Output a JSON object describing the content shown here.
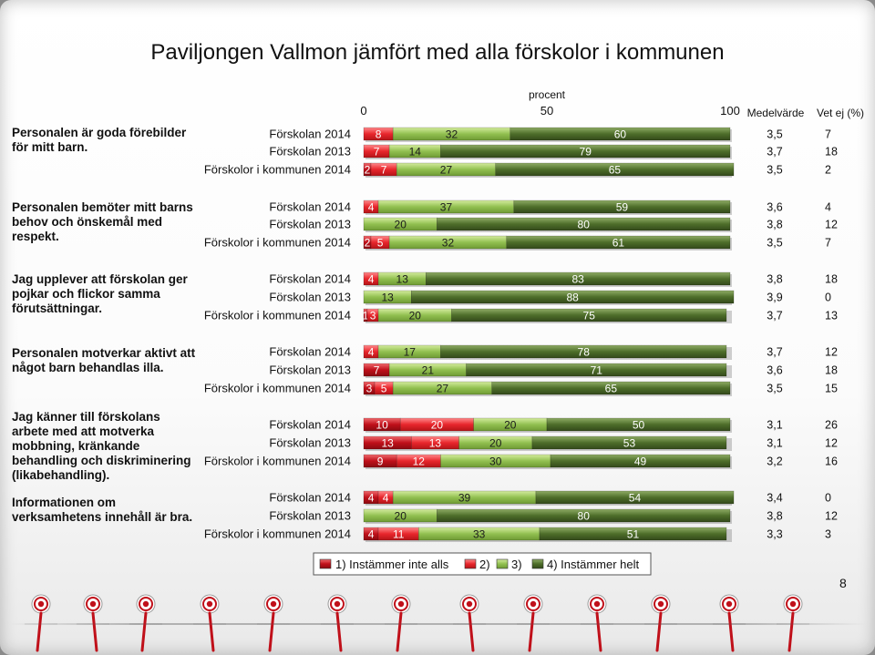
{
  "title": "Paviljongen Vallmon jämfört med alla förskolor i kommunen",
  "page_number": "8",
  "colors": {
    "c1": "#c0101a",
    "c2": "#e8262c",
    "c3": "#92c050",
    "c4": "#4e6e2a"
  },
  "chart_data": {
    "type": "bar",
    "stacked": true,
    "orientation": "horizontal",
    "xlabel": "procent",
    "xlim": [
      0,
      100
    ],
    "xticks": [
      "0",
      "50",
      "100"
    ],
    "col_headers": {
      "mean": "Medelvärde",
      "unknown": "Vet ej (%)"
    },
    "legend": [
      "1) Instämmer inte alls",
      "2)",
      "3)",
      "4) Instämmer helt"
    ],
    "legend_position": "bottom",
    "groups": [
      {
        "question": [
          "Personalen är goda förebilder",
          "för mitt barn."
        ],
        "rows": [
          {
            "label": "Förskolan 2014",
            "values": [
              0,
              8,
              32,
              60
            ],
            "labels": [
              "0",
              "8",
              "32",
              "60"
            ],
            "mean": "3,5",
            "unknown": "7"
          },
          {
            "label": "Förskolan 2013",
            "values": [
              0,
              7,
              14,
              79
            ],
            "labels": [
              "0",
              "7",
              "14",
              "79"
            ],
            "mean": "3,7",
            "unknown": "18"
          },
          {
            "label": "Förskolor i kommunen 2014",
            "values": [
              2,
              7,
              27,
              65
            ],
            "labels": [
              "2",
              "7",
              "27",
              "65"
            ],
            "mean": "3,5",
            "unknown": "2"
          }
        ]
      },
      {
        "question": [
          "Personalen bemöter mitt barns",
          "behov och önskemål med",
          "respekt."
        ],
        "rows": [
          {
            "label": "Förskolan 2014",
            "values": [
              0,
              4,
              37,
              59
            ],
            "labels": [
              "0",
              "4",
              "37",
              "59"
            ],
            "mean": "3,6",
            "unknown": "4"
          },
          {
            "label": "Förskolan 2013",
            "values": [
              0,
              0,
              20,
              80
            ],
            "labels": [
              "0",
              "",
              "20",
              "80"
            ],
            "mean": "3,8",
            "unknown": "12"
          },
          {
            "label": "Förskolor i kommunen 2014",
            "values": [
              2,
              5,
              32,
              61
            ],
            "labels": [
              "2",
              "5",
              "32",
              "61"
            ],
            "mean": "3,5",
            "unknown": "7"
          }
        ]
      },
      {
        "question": [
          "Jag upplever att förskolan ger",
          "pojkar och flickor samma",
          "förutsättningar."
        ],
        "rows": [
          {
            "label": "Förskolan 2014",
            "values": [
              0,
              4,
              13,
              83
            ],
            "labels": [
              "0",
              "4",
              "13",
              "83"
            ],
            "mean": "3,8",
            "unknown": "18"
          },
          {
            "label": "Förskolan 2013",
            "values": [
              0,
              0,
              13,
              88
            ],
            "labels": [
              "0",
              "",
              "13",
              "88"
            ],
            "mean": "3,9",
            "unknown": "0"
          },
          {
            "label": "Förskolor i kommunen 2014",
            "values": [
              1,
              3,
              20,
              75
            ],
            "labels": [
              "1",
              "3",
              "20",
              "75"
            ],
            "mean": "3,7",
            "unknown": "13"
          }
        ]
      },
      {
        "question": [
          "Personalen motverkar aktivt att",
          "något barn behandlas illa."
        ],
        "rows": [
          {
            "label": "Förskolan 2014",
            "values": [
              0,
              4,
              17,
              78
            ],
            "labels": [
              "0",
              "4",
              "17",
              "78"
            ],
            "mean": "3,7",
            "unknown": "12"
          },
          {
            "label": "Förskolan 2013",
            "values": [
              7,
              0,
              21,
              71
            ],
            "labels": [
              "7",
              "0",
              "21",
              "71"
            ],
            "mean": "3,6",
            "unknown": "18"
          },
          {
            "label": "Förskolor i kommunen 2014",
            "values": [
              3,
              5,
              27,
              65
            ],
            "labels": [
              "3",
              "5",
              "27",
              "65"
            ],
            "mean": "3,5",
            "unknown": "15"
          }
        ]
      },
      {
        "question": [
          "Jag känner till förskolans",
          "arbete med att motverka",
          "mobbning, kränkande",
          "behandling och diskriminering",
          "(likabehandling)."
        ],
        "rows": [
          {
            "label": "Förskolan 2014",
            "values": [
              10,
              20,
              20,
              50
            ],
            "labels": [
              "10",
              "20",
              "20",
              "50"
            ],
            "mean": "3,1",
            "unknown": "26"
          },
          {
            "label": "Förskolan 2013",
            "values": [
              13,
              13,
              20,
              53
            ],
            "labels": [
              "13",
              "13",
              "20",
              "53"
            ],
            "mean": "3,1",
            "unknown": "12"
          },
          {
            "label": "Förskolor i kommunen 2014",
            "values": [
              9,
              12,
              30,
              49
            ],
            "labels": [
              "9",
              "12",
              "30",
              "49"
            ],
            "mean": "3,2",
            "unknown": "16"
          }
        ]
      },
      {
        "question": [
          "Informationen om",
          "verksamhetens innehåll är bra."
        ],
        "rows": [
          {
            "label": "Förskolan 2014",
            "values": [
              4,
              4,
              39,
              54
            ],
            "labels": [
              "4",
              "4",
              "39",
              "54"
            ],
            "mean": "3,4",
            "unknown": "0"
          },
          {
            "label": "Förskolan 2013",
            "values": [
              0,
              0,
              20,
              80
            ],
            "labels": [
              "0",
              "",
              "20",
              "80"
            ],
            "mean": "3,8",
            "unknown": "12"
          },
          {
            "label": "Förskolor i kommunen 2014",
            "values": [
              4,
              11,
              33,
              51
            ],
            "labels": [
              "4",
              "11",
              "33",
              "51"
            ],
            "mean": "3,3",
            "unknown": "3"
          }
        ]
      }
    ]
  }
}
